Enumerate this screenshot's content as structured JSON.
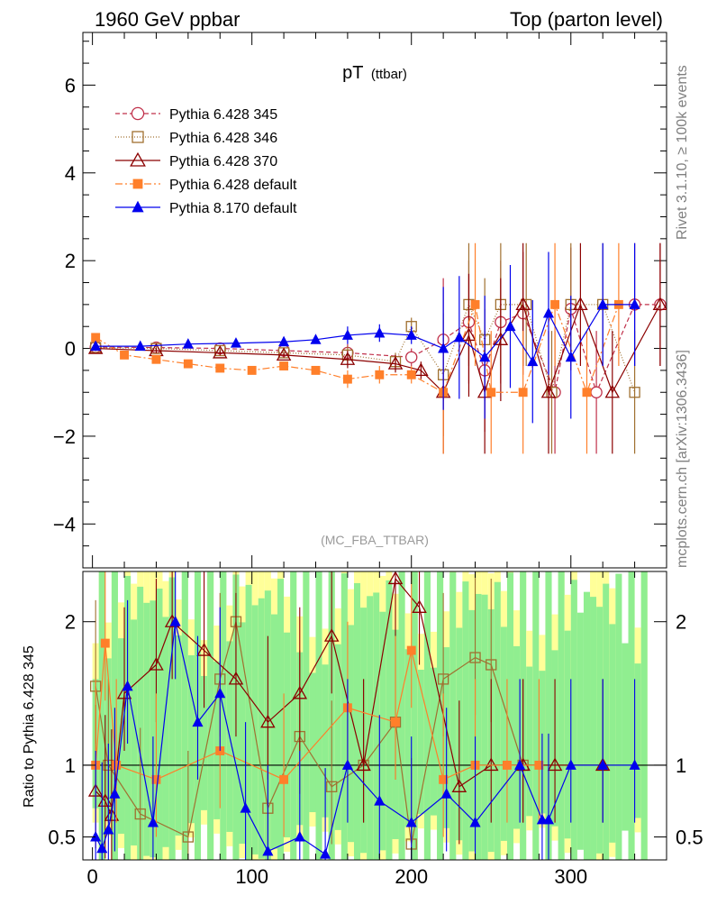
{
  "header": {
    "left": "1960 GeV ppbar",
    "right": "Top (parton level)"
  },
  "side_labels": {
    "rivet": "Rivet 3.1.10, ≥ 100k events",
    "mcplots": "mcplots.cern.ch [arXiv:1306.3436]"
  },
  "chart_data": [
    {
      "panel": "main",
      "type": "line",
      "title": "pT",
      "title_sub": "(ttbar)",
      "watermark": "(MC_FBA_TTBAR)",
      "xlim": [
        -6,
        360
      ],
      "ylim": [
        -5,
        7.2
      ],
      "yticks": [
        "−4",
        "−2",
        "0",
        "2",
        "4",
        "6"
      ],
      "ytick_values": [
        -4,
        -2,
        0,
        2,
        4,
        6
      ],
      "grid": false,
      "legend_position": "top-left",
      "series": [
        {
          "name": "Pythia 6.428 345",
          "color": "#c0304a",
          "marker": "open-circle",
          "dash": "5,3",
          "points": [
            [
              2,
              0.03
            ],
            [
              40,
              0.02
            ],
            [
              80,
              0.0
            ],
            [
              120,
              -0.05
            ],
            [
              160,
              -0.1
            ],
            [
              200,
              -0.2
            ],
            [
              220,
              0.2
            ],
            [
              236,
              0.6
            ],
            [
              246,
              -0.5
            ],
            [
              256,
              0.6
            ],
            [
              270,
              0.8
            ],
            [
              290,
              -1.0
            ],
            [
              300,
              0.9
            ],
            [
              316,
              -1.0
            ],
            [
              340,
              1.0
            ],
            [
              356,
              1.0
            ]
          ]
        },
        {
          "name": "Pythia 6.428 346",
          "color": "#a07030",
          "marker": "open-square",
          "dash": "1,2",
          "points": [
            [
              2,
              0.02
            ],
            [
              40,
              0.0
            ],
            [
              80,
              -0.05
            ],
            [
              120,
              -0.1
            ],
            [
              160,
              -0.15
            ],
            [
              190,
              -0.3
            ],
            [
              200,
              0.5
            ],
            [
              220,
              -0.6
            ],
            [
              236,
              1.0
            ],
            [
              246,
              0.2
            ],
            [
              256,
              1.0
            ],
            [
              272,
              1.0
            ],
            [
              288,
              -1.0
            ],
            [
              300,
              1.0
            ],
            [
              320,
              1.0
            ],
            [
              340,
              -1.0
            ]
          ]
        },
        {
          "name": "Pythia 6.428 370",
          "color": "#8b0000",
          "marker": "open-triangle",
          "dash": "",
          "points": [
            [
              2,
              0.0
            ],
            [
              40,
              -0.05
            ],
            [
              80,
              -0.1
            ],
            [
              120,
              -0.15
            ],
            [
              160,
              -0.25
            ],
            [
              190,
              -0.35
            ],
            [
              206,
              -0.5
            ],
            [
              220,
              -1.0
            ],
            [
              236,
              0.3
            ],
            [
              246,
              -1.0
            ],
            [
              256,
              0.2
            ],
            [
              270,
              1.0
            ],
            [
              286,
              -1.0
            ],
            [
              306,
              1.0
            ],
            [
              326,
              -1.0
            ],
            [
              356,
              1.0
            ]
          ]
        },
        {
          "name": "Pythia 6.428 default",
          "color": "#ff7f2a",
          "marker": "filled-square",
          "dash": "8,3,2,3",
          "points": [
            [
              2,
              0.25
            ],
            [
              20,
              -0.15
            ],
            [
              40,
              -0.25
            ],
            [
              60,
              -0.35
            ],
            [
              80,
              -0.45
            ],
            [
              100,
              -0.5
            ],
            [
              120,
              -0.4
            ],
            [
              140,
              -0.5
            ],
            [
              160,
              -0.7
            ],
            [
              180,
              -0.6
            ],
            [
              200,
              -0.6
            ],
            [
              220,
              -1.0
            ],
            [
              240,
              1.0
            ],
            [
              250,
              -1.0
            ],
            [
              270,
              -1.0
            ],
            [
              290,
              1.0
            ],
            [
              310,
              -1.0
            ],
            [
              330,
              1.0
            ]
          ]
        },
        {
          "name": "Pythia 8.170 default",
          "color": "#0000ee",
          "marker": "filled-triangle",
          "dash": "",
          "points": [
            [
              2,
              0.05
            ],
            [
              30,
              0.05
            ],
            [
              60,
              0.1
            ],
            [
              90,
              0.12
            ],
            [
              120,
              0.15
            ],
            [
              140,
              0.2
            ],
            [
              160,
              0.3
            ],
            [
              180,
              0.35
            ],
            [
              200,
              0.3
            ],
            [
              220,
              0.0
            ],
            [
              230,
              0.25
            ],
            [
              246,
              -0.2
            ],
            [
              262,
              0.5
            ],
            [
              276,
              -0.3
            ],
            [
              286,
              0.8
            ],
            [
              300,
              -0.2
            ],
            [
              320,
              1.0
            ],
            [
              340,
              1.0
            ]
          ]
        }
      ]
    },
    {
      "panel": "ratio",
      "type": "line",
      "ylabel": "Ratio to Pythia 6.428 345",
      "xlim": [
        -6,
        360
      ],
      "ylim": [
        0.34,
        2.35
      ],
      "yticks": [
        "0.5",
        "1",
        "2"
      ],
      "ytick_values": [
        0.5,
        1,
        2
      ],
      "xticks": [
        "0",
        "100",
        "200",
        "300"
      ],
      "xtick_values": [
        0,
        100,
        200,
        300
      ],
      "reference_line": 1,
      "series": [
        {
          "name": "Pythia 6.428 346",
          "color": "#a07030",
          "marker": "open-square",
          "points": [
            [
              2,
              1.55
            ],
            [
              10,
              1.0
            ],
            [
              30,
              0.66
            ],
            [
              60,
              0.5
            ],
            [
              80,
              1.6
            ],
            [
              90,
              2.0
            ],
            [
              110,
              0.7
            ],
            [
              130,
              1.2
            ],
            [
              150,
              0.85
            ],
            [
              170,
              1.0
            ],
            [
              190,
              1.3
            ],
            [
              200,
              0.45
            ],
            [
              220,
              1.6
            ],
            [
              240,
              1.75
            ],
            [
              250,
              1.7
            ],
            [
              270,
              1.0
            ]
          ]
        },
        {
          "name": "Pythia 6.428 370",
          "color": "#8b0000",
          "marker": "open-triangle",
          "points": [
            [
              2,
              0.82
            ],
            [
              8,
              0.75
            ],
            [
              12,
              0.65
            ],
            [
              20,
              1.5
            ],
            [
              40,
              1.7
            ],
            [
              50,
              2.0
            ],
            [
              70,
              1.8
            ],
            [
              90,
              1.6
            ],
            [
              110,
              1.3
            ],
            [
              130,
              1.5
            ],
            [
              150,
              1.9
            ],
            [
              170,
              1.0
            ],
            [
              190,
              2.3
            ],
            [
              205,
              2.1
            ],
            [
              230,
              0.85
            ],
            [
              250,
              1.0
            ],
            [
              270,
              1.0
            ],
            [
              290,
              1.0
            ],
            [
              320,
              1.0
            ]
          ]
        },
        {
          "name": "Pythia 6.428 default",
          "color": "#ff7f2a",
          "marker": "filled-square",
          "points": [
            [
              2,
              1.0
            ],
            [
              8,
              1.85
            ],
            [
              15,
              1.0
            ],
            [
              40,
              0.9
            ],
            [
              80,
              1.1
            ],
            [
              120,
              0.9
            ],
            [
              160,
              1.4
            ],
            [
              190,
              1.3
            ],
            [
              200,
              1.8
            ],
            [
              220,
              0.9
            ],
            [
              240,
              1.0
            ],
            [
              260,
              1.0
            ],
            [
              280,
              1.0
            ]
          ]
        },
        {
          "name": "Pythia 8.170 default",
          "color": "#0000ee",
          "marker": "filled-triangle",
          "points": [
            [
              2,
              0.5
            ],
            [
              6,
              0.42
            ],
            [
              10,
              0.55
            ],
            [
              14,
              0.8
            ],
            [
              22,
              1.55
            ],
            [
              38,
              0.6
            ],
            [
              52,
              2.0
            ],
            [
              66,
              1.3
            ],
            [
              80,
              1.5
            ],
            [
              96,
              0.7
            ],
            [
              110,
              0.4
            ],
            [
              130,
              0.5
            ],
            [
              146,
              0.38
            ],
            [
              160,
              1.0
            ],
            [
              180,
              0.75
            ],
            [
              200,
              0.6
            ],
            [
              222,
              0.8
            ],
            [
              240,
              0.6
            ],
            [
              268,
              1.0
            ],
            [
              282,
              0.62
            ],
            [
              286,
              0.62
            ],
            [
              300,
              1.0
            ],
            [
              320,
              1.0
            ],
            [
              340,
              1.0
            ]
          ]
        }
      ]
    }
  ]
}
